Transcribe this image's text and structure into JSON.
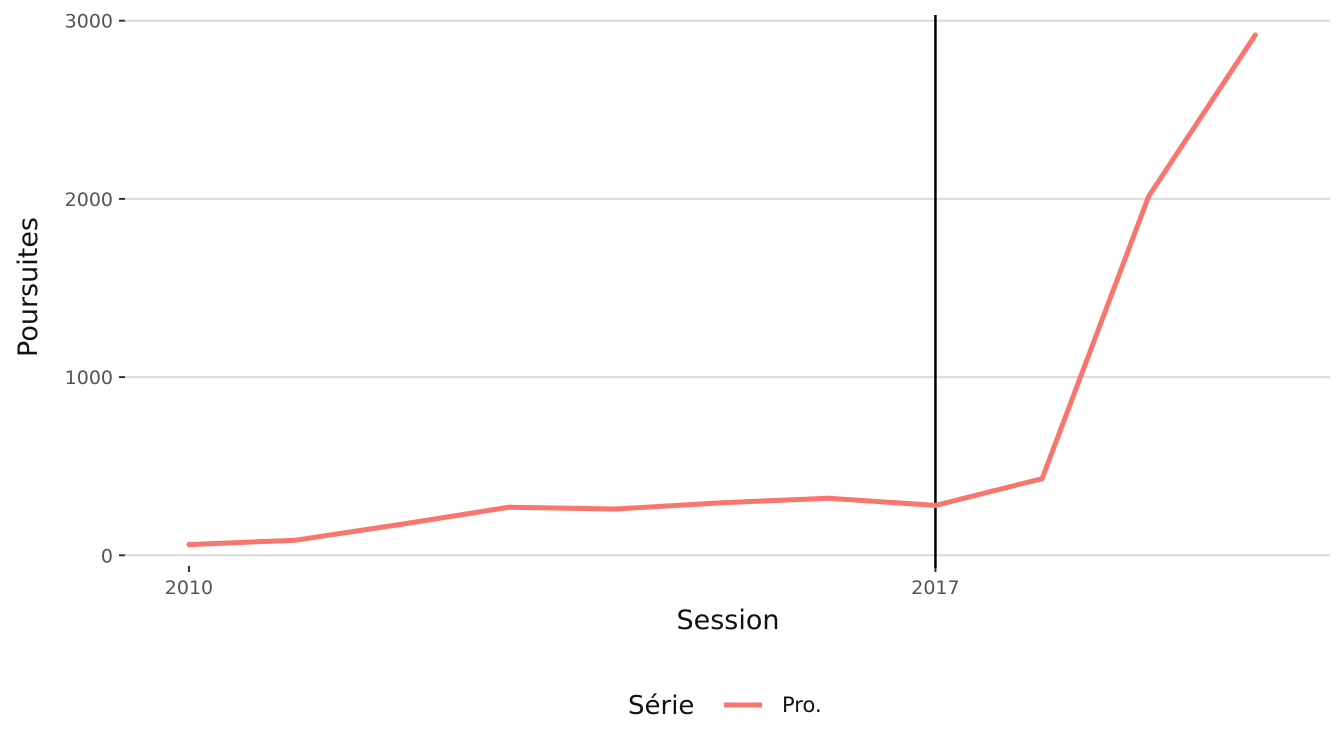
{
  "chart_data": {
    "type": "line",
    "xlabel": "Session",
    "ylabel": "Poursuites",
    "x_ticks": [
      2010,
      2017
    ],
    "x_tick_labels": [
      "2010",
      "2017"
    ],
    "xlim": [
      2009.4,
      2020.7
    ],
    "y_ticks": [
      0,
      1000,
      2000,
      3000
    ],
    "y_tick_labels": [
      "0",
      "1000",
      "2000",
      "3000"
    ],
    "ylim": [
      -60,
      3060
    ],
    "grid": "horizontal",
    "reference_line": {
      "x": 2017,
      "color": "#000000"
    },
    "legend": {
      "title": "Série",
      "position": "bottom"
    },
    "series": [
      {
        "name": "Pro.",
        "color": "#F8766D",
        "x": [
          2010,
          2011,
          2012,
          2013,
          2014,
          2015,
          2016,
          2017,
          2018,
          2019,
          2020
        ],
        "y": [
          60,
          85,
          175,
          270,
          260,
          295,
          320,
          280,
          430,
          2015,
          2920
        ]
      }
    ]
  }
}
